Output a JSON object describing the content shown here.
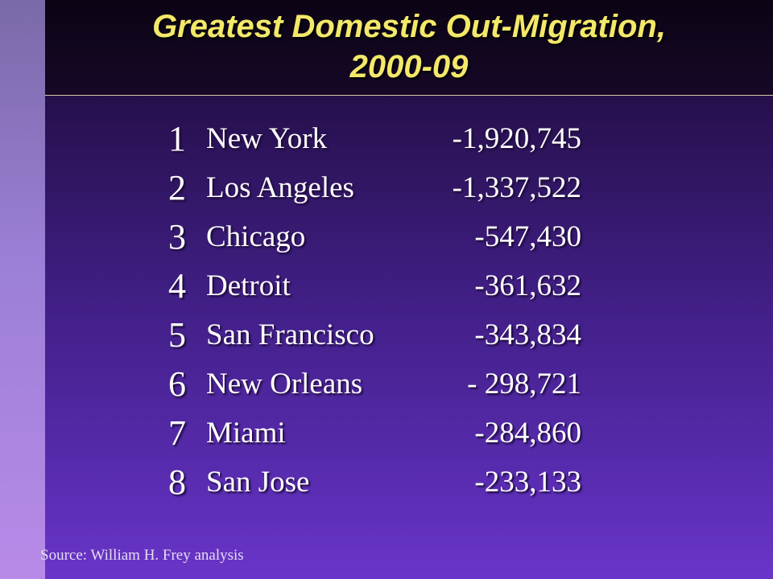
{
  "title": "Greatest Domestic Out-Migration, 2000-09",
  "title_line1": "Greatest Domestic Out-Migration,",
  "title_line2": "2000-09",
  "colors": {
    "title": "#f4e86a",
    "text": "#ffffff",
    "background_top": "#140726",
    "background_bottom": "#6a35c9"
  },
  "rankings": [
    {
      "rank": "1",
      "city": "New York",
      "value": "-1,920,745"
    },
    {
      "rank": "2",
      "city": "Los Angeles",
      "value": "-1,337,522"
    },
    {
      "rank": "3",
      "city": "Chicago",
      "value": "-547,430"
    },
    {
      "rank": "4",
      "city": "Detroit",
      "value": "-361,632"
    },
    {
      "rank": "5",
      "city": "San Francisco",
      "value": "-343,834"
    },
    {
      "rank": "6",
      "city": "New Orleans",
      "value": "- 298,721"
    },
    {
      "rank": "7",
      "city": "Miami",
      "value": "-284,860"
    },
    {
      "rank": "8",
      "city": "San Jose",
      "value": "-233,133"
    }
  ],
  "source": "Source: William H. Frey analysis"
}
